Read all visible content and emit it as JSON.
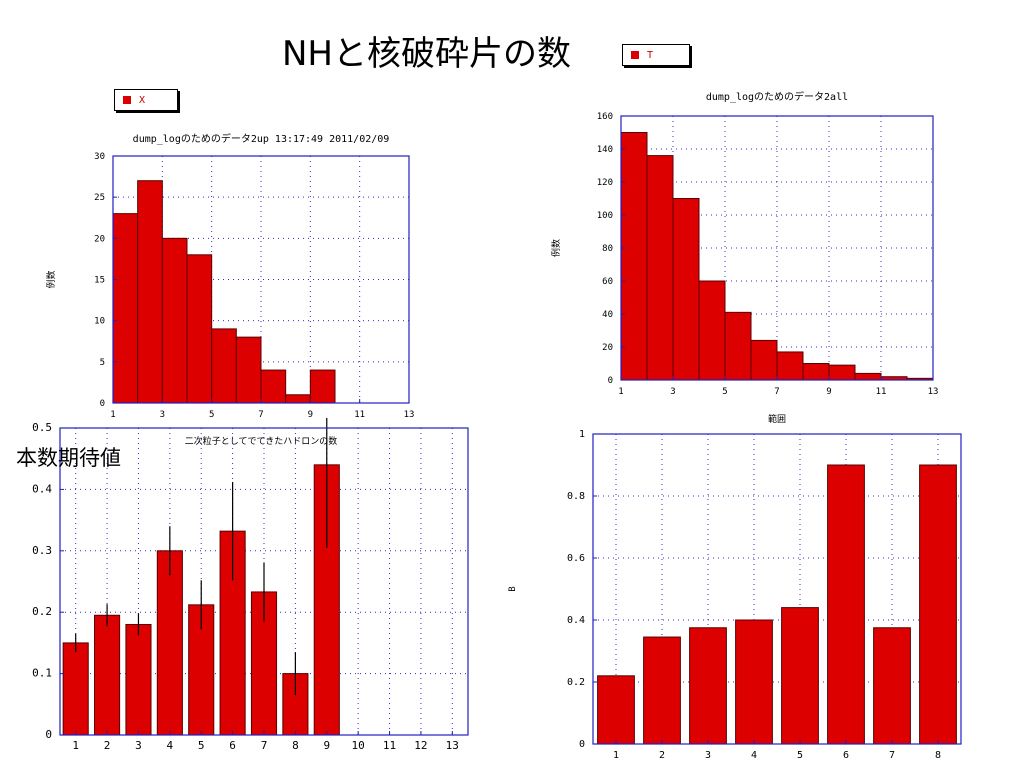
{
  "slide": {
    "title": "NHと核破砕片の数",
    "side_label": "本数期待値",
    "legend_top": "T",
    "legend_left": "X"
  },
  "colors": {
    "bar": "#dd0000",
    "bar_edge": "#5a0000",
    "frame": "#2020c0",
    "grid": "#3030c0"
  },
  "chart_data": [
    {
      "type": "bar",
      "title": "dump_logのためのデータ2up 13:17:49  2011/02/09",
      "xlabel": "二次粒子としてでてきたハドロンの数",
      "ylabel": "例数",
      "x": [
        1,
        2,
        3,
        4,
        5,
        6,
        7,
        8,
        9
      ],
      "values": [
        23,
        27,
        20,
        18,
        9,
        8,
        4,
        1,
        4
      ],
      "xlim": [
        1,
        13
      ],
      "ylim": [
        0,
        30
      ],
      "xticks": [
        1,
        3,
        5,
        7,
        9,
        11,
        13
      ],
      "yticks": [
        0,
        5,
        10,
        15,
        20,
        25,
        30
      ],
      "grid": true
    },
    {
      "type": "bar",
      "title": "dump_logのためのデータ2all",
      "xlabel": "範囲",
      "ylabel": "例数",
      "x": [
        1,
        2,
        3,
        4,
        5,
        6,
        7,
        8,
        9,
        10,
        11,
        12
      ],
      "values": [
        150,
        136,
        110,
        60,
        41,
        24,
        17,
        10,
        9,
        4,
        2,
        1
      ],
      "xlim": [
        1,
        13
      ],
      "ylim": [
        0,
        160
      ],
      "xticks": [
        1,
        3,
        5,
        7,
        9,
        11,
        13
      ],
      "yticks": [
        0,
        20,
        40,
        60,
        80,
        100,
        120,
        140,
        160
      ],
      "grid": true
    },
    {
      "type": "bar",
      "title": "",
      "xlabel": "",
      "ylabel": "",
      "x": [
        1,
        2,
        3,
        4,
        5,
        6,
        7,
        8,
        9
      ],
      "values": [
        0.15,
        0.195,
        0.18,
        0.3,
        0.212,
        0.332,
        0.233,
        0.1,
        0.44
      ],
      "errors": [
        0.015,
        0.018,
        0.018,
        0.04,
        0.04,
        0.08,
        0.048,
        0.035,
        0.135
      ],
      "xlim": [
        0.5,
        13.5
      ],
      "ylim": [
        0,
        0.5
      ],
      "xticks": [
        1,
        2,
        3,
        4,
        5,
        6,
        7,
        8,
        9,
        10,
        11,
        12,
        13
      ],
      "yticks": [
        "0",
        "0.1",
        "0.2",
        "0.3",
        "0.4",
        "0.5"
      ],
      "grid": true
    },
    {
      "type": "bar",
      "title": "",
      "xlabel": "",
      "ylabel": "B",
      "x": [
        1,
        2,
        3,
        4,
        5,
        6,
        7,
        8
      ],
      "values": [
        0.22,
        0.345,
        0.375,
        0.4,
        0.44,
        0.9,
        0.375,
        0.9
      ],
      "xlim": [
        0.5,
        8.5
      ],
      "ylim": [
        0,
        1
      ],
      "xticks": [
        1,
        2,
        3,
        4,
        5,
        6,
        7,
        8
      ],
      "yticks": [
        "0",
        "0.2",
        "0.4",
        "0.6",
        "0.8",
        "1"
      ],
      "grid": true
    }
  ]
}
